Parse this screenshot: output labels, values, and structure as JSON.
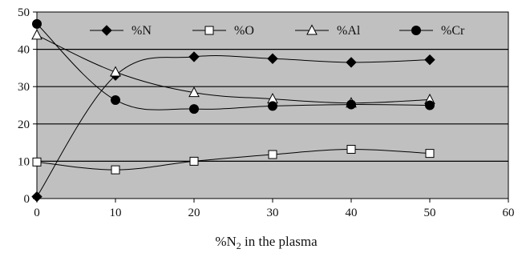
{
  "chart_data": {
    "type": "line",
    "xlabel": {
      "prefix": "%N",
      "sub": "2",
      "suffix": " in the plasma"
    },
    "ylabel": "",
    "xlim": [
      0,
      60
    ],
    "ylim": [
      0,
      50
    ],
    "x_ticks": [
      "0",
      "10",
      "20",
      "30",
      "40",
      "50",
      "60"
    ],
    "y_ticks": [
      "0",
      "10",
      "20",
      "30",
      "40",
      "50"
    ],
    "grid": "horizontal",
    "legend_position": "top",
    "background_color": "#c0c0c0",
    "series": [
      {
        "name": "%N",
        "marker": "diamond",
        "x": [
          0,
          10,
          20,
          30,
          40,
          50
        ],
        "y": [
          0.5,
          33,
          38,
          37.5,
          36.5,
          37.2
        ]
      },
      {
        "name": "%O",
        "marker": "square-open",
        "x": [
          0,
          10,
          20,
          30,
          40,
          50
        ],
        "y": [
          9.8,
          7.7,
          10,
          11.8,
          13.2,
          12.1
        ]
      },
      {
        "name": "%Al",
        "marker": "triangle-open",
        "x": [
          0,
          10,
          20,
          30,
          40,
          50
        ],
        "y": [
          43.8,
          33.9,
          28.4,
          26.7,
          25.6,
          26.5
        ]
      },
      {
        "name": "%Cr",
        "marker": "circle",
        "x": [
          0,
          10,
          20,
          30,
          40,
          50
        ],
        "y": [
          46.8,
          26.4,
          24,
          24.8,
          25.2,
          25
        ]
      }
    ]
  }
}
